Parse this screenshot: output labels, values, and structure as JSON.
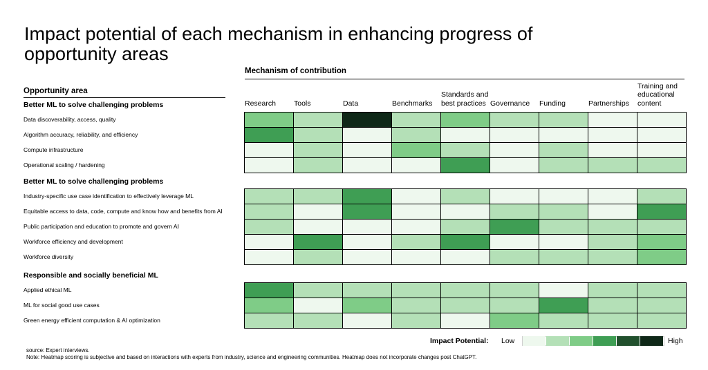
{
  "colors": {
    "scale": [
      "#eef8ee",
      "#b4e0b7",
      "#7fcc87",
      "#3f9e54",
      "#21502d",
      "#0f2818"
    ]
  },
  "chart_data": {
    "type": "heatmap",
    "title": "Impact potential of each mechanism in enhancing progress of opportunity areas",
    "column_axis_label": "Mechanism of contribution",
    "row_axis_label": "Opportunity area",
    "columns": [
      "Research",
      "Tools",
      "Data",
      "Benchmarks",
      "Standards and best practices",
      "Governance",
      "Funding",
      "Partnerships",
      "Training and educational content"
    ],
    "groups": [
      {
        "name": "Better ML to solve challenging problems",
        "rows": [
          {
            "label": "Data discoverability, access, quality",
            "values": [
              2,
              1,
              5,
              1,
              2,
              1,
              1,
              0,
              0
            ]
          },
          {
            "label": "Algorithm accuracy, reliability, and efficiency",
            "values": [
              3,
              1,
              0,
              1,
              0,
              0,
              0,
              0,
              0
            ]
          },
          {
            "label": "Compute infrastructure",
            "values": [
              0,
              1,
              0,
              2,
              1,
              0,
              1,
              0,
              0
            ]
          },
          {
            "label": "Operational scaling / hardening",
            "values": [
              0,
              1,
              0,
              0,
              3,
              0,
              1,
              1,
              1
            ]
          }
        ]
      },
      {
        "name": "Better ML to solve challenging problems",
        "rows": [
          {
            "label": "Industry-specific use case identification to effectively leverage ML",
            "values": [
              1,
              1,
              3,
              0,
              1,
              0,
              0,
              0,
              1
            ]
          },
          {
            "label": "Equitable access to data, code, compute and know how and benefits from AI",
            "values": [
              1,
              0,
              3,
              0,
              0,
              1,
              1,
              0,
              3
            ]
          },
          {
            "label": "Public participation and education to promote and govern AI",
            "values": [
              1,
              0,
              0,
              0,
              1,
              3,
              1,
              1,
              1
            ]
          },
          {
            "label": "Workforce efficiency and development",
            "values": [
              0,
              3,
              0,
              1,
              3,
              0,
              0,
              1,
              2
            ]
          },
          {
            "label": "Workforce diversity",
            "values": [
              0,
              1,
              0,
              0,
              0,
              1,
              1,
              1,
              2
            ]
          }
        ]
      },
      {
        "name": "Responsible and socially beneficial ML",
        "rows": [
          {
            "label": "Applied ethical ML",
            "values": [
              3,
              1,
              1,
              1,
              1,
              1,
              0,
              1,
              1
            ]
          },
          {
            "label": "ML for social good use cases",
            "values": [
              2,
              0,
              2,
              1,
              1,
              1,
              3,
              1,
              1
            ]
          },
          {
            "label": "Green energy efficient computation & AI optimization",
            "values": [
              1,
              1,
              0,
              1,
              0,
              2,
              1,
              1,
              1
            ]
          }
        ]
      }
    ],
    "legend": {
      "title": "Impact Potential:",
      "low_label": "Low",
      "high_label": "High",
      "levels": 6,
      "placement": "bottom-right"
    }
  },
  "footer": {
    "source": "source: Expert interviews.",
    "note": "Note: Heatmap scoring is subjective and based on interactions with experts from industry, science and engineering communities. Heatmap does not incorporate changes post ChatGPT."
  }
}
